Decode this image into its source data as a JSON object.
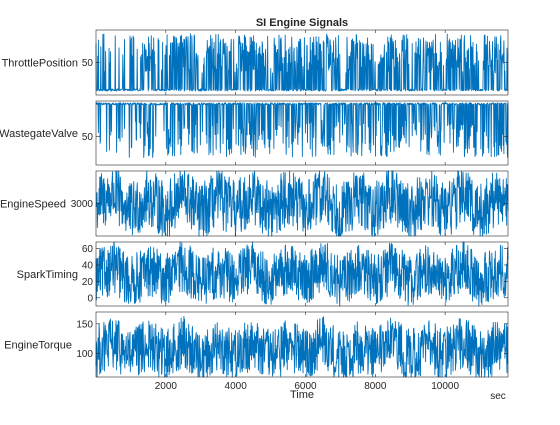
{
  "chart_data": {
    "type": "line",
    "title": "SI Engine Signals",
    "xlabel": "Time",
    "xunit": "sec",
    "xlim": [
      0,
      11800
    ],
    "xticks": [
      2000,
      4000,
      6000,
      8000,
      10000
    ],
    "line_color": "#0072BD",
    "series": [
      {
        "name": "ThrottlePosition",
        "ylim": [
          5,
          95
        ],
        "yticks": [
          50
        ],
        "baseline": 12,
        "spike_to": 90,
        "spike_rate": 0.35,
        "x": [
          0,
          500,
          1000,
          1500,
          2000,
          2500,
          3000,
          3500,
          4000,
          4500,
          5000,
          5500,
          6000,
          6500,
          7000,
          7500,
          8000,
          8500,
          9000,
          9500,
          10000,
          10500,
          11000,
          11500
        ],
        "values": [
          12,
          15,
          11,
          30,
          14,
          90,
          12,
          45,
          11,
          90,
          13,
          60,
          12,
          90,
          14,
          40,
          12,
          90,
          11,
          55,
          13,
          90,
          12,
          70
        ]
      },
      {
        "name": "WastegateValve",
        "ylim": [
          10,
          100
        ],
        "yticks": [
          50
        ],
        "baseline": 96,
        "spike_to": 20,
        "spike_rate": 0.25,
        "x": [
          0,
          500,
          1000,
          1500,
          2000,
          2500,
          3000,
          3500,
          4000,
          4500,
          5000,
          5500,
          6000,
          6500,
          7000,
          7500,
          8000,
          8500,
          9000,
          9500,
          10000,
          10500,
          11000,
          11500
        ],
        "values": [
          96,
          94,
          96,
          50,
          96,
          20,
          95,
          60,
          96,
          25,
          96,
          40,
          95,
          20,
          96,
          55,
          96,
          22,
          95,
          45,
          96,
          20,
          96,
          70
        ]
      },
      {
        "name": "EngineSpeed",
        "ylim": [
          2000,
          4000
        ],
        "yticks": [
          3000
        ],
        "center": 3000,
        "amplitude": 900,
        "x": [
          0,
          500,
          1000,
          1500,
          2000,
          2500,
          3000,
          3500,
          4000,
          4500,
          5000,
          5500,
          6000,
          6500,
          7000,
          7500,
          8000,
          8500,
          9000,
          9500,
          10000,
          10500,
          11000,
          11500
        ],
        "values": [
          3000,
          3800,
          2200,
          3600,
          2300,
          3900,
          2100,
          3500,
          2400,
          3800,
          2200,
          3700,
          2300,
          3900,
          2100,
          3600,
          2400,
          3800,
          2200,
          3700,
          2300,
          3900,
          2100,
          3600
        ]
      },
      {
        "name": "SparkTiming",
        "ylim": [
          -10,
          68
        ],
        "yticks": [
          0,
          20,
          40,
          60
        ],
        "yticklabels": [
          "0",
          "20",
          "40",
          "60"
        ],
        "center": 28,
        "amplitude": 32,
        "x": [
          0,
          500,
          1000,
          1500,
          2000,
          2500,
          3000,
          3500,
          4000,
          4500,
          5000,
          5500,
          6000,
          6500,
          7000,
          7500,
          8000,
          8500,
          9000,
          9500,
          10000,
          10500,
          11000,
          11500
        ],
        "values": [
          20,
          55,
          0,
          45,
          10,
          60,
          5,
          40,
          15,
          58,
          2,
          50,
          8,
          62,
          0,
          45,
          12,
          55,
          5,
          48,
          10,
          60,
          3,
          42
        ]
      },
      {
        "name": "EngineTorque",
        "ylim": [
          60,
          170
        ],
        "yticks": [
          100,
          150
        ],
        "center": 105,
        "amplitude": 45,
        "x": [
          0,
          500,
          1000,
          1500,
          2000,
          2500,
          3000,
          3500,
          4000,
          4500,
          5000,
          5500,
          6000,
          6500,
          7000,
          7500,
          8000,
          8500,
          9000,
          9500,
          10000,
          10500,
          11000,
          11500
        ],
        "values": [
          100,
          140,
          80,
          130,
          75,
          150,
          70,
          125,
          85,
          145,
          72,
          135,
          80,
          155,
          70,
          120,
          90,
          145,
          75,
          130,
          85,
          150,
          70,
          125
        ]
      }
    ]
  }
}
